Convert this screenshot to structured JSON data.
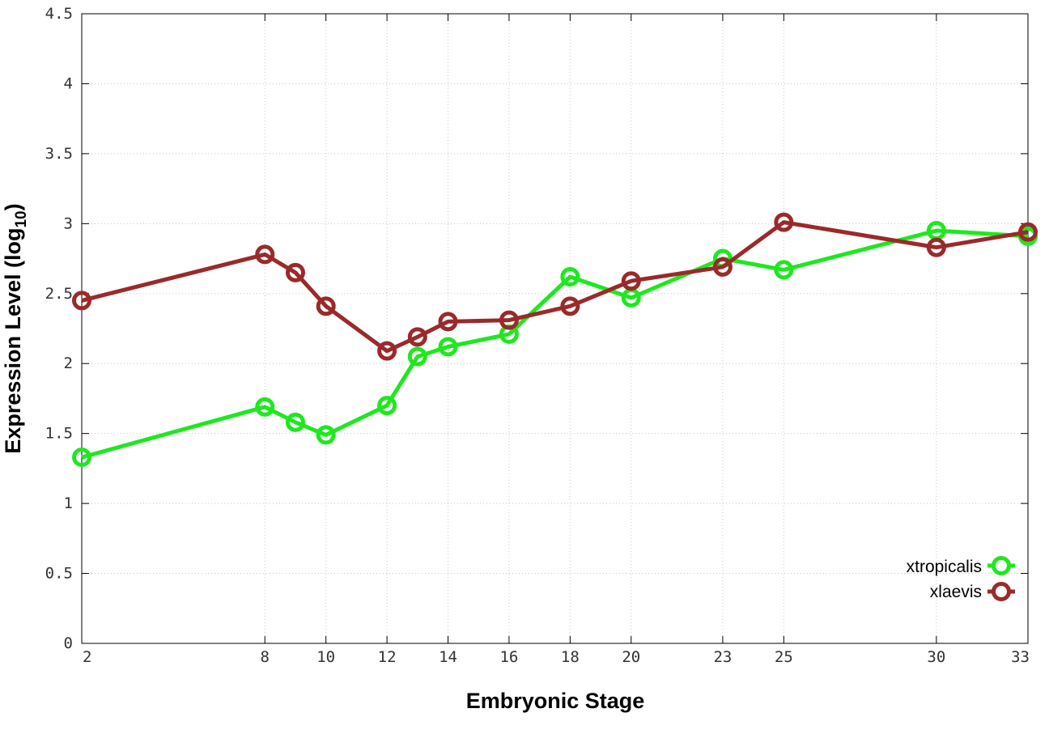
{
  "chart_data": {
    "type": "line",
    "xlabel": "Embryonic Stage",
    "ylabel": "Expression Level (log",
    "ylabel_sub": "10",
    "ylabel_end": ")",
    "xlim": [
      2,
      33
    ],
    "ylim": [
      0,
      4.5
    ],
    "x_ticks": [
      2,
      8,
      10,
      12,
      14,
      16,
      18,
      20,
      23,
      25,
      30,
      33
    ],
    "y_ticks": [
      0,
      0.5,
      1,
      1.5,
      2,
      2.5,
      3,
      3.5,
      4,
      4.5
    ],
    "y_tick_labels": [
      "0",
      "0.5",
      "1",
      "1.5",
      "2",
      "2.5",
      "3",
      "3.5",
      "4",
      "4.5"
    ],
    "grid": true,
    "legend_position": "bottom-right",
    "x": [
      2,
      8,
      9,
      10,
      12,
      13,
      14,
      16,
      18,
      20,
      23,
      25,
      30,
      33
    ],
    "series": [
      {
        "name": "xtropicalis",
        "color": "#1ee81e",
        "values": [
          1.33,
          1.69,
          1.58,
          1.49,
          1.7,
          2.05,
          2.12,
          2.21,
          2.62,
          2.47,
          2.75,
          2.67,
          2.95,
          2.91
        ]
      },
      {
        "name": "xlaevis",
        "color": "#9a2a2a",
        "values": [
          2.45,
          2.78,
          2.65,
          2.41,
          2.09,
          2.19,
          2.3,
          2.31,
          2.41,
          2.59,
          2.69,
          3.01,
          2.83,
          2.94
        ]
      }
    ]
  }
}
